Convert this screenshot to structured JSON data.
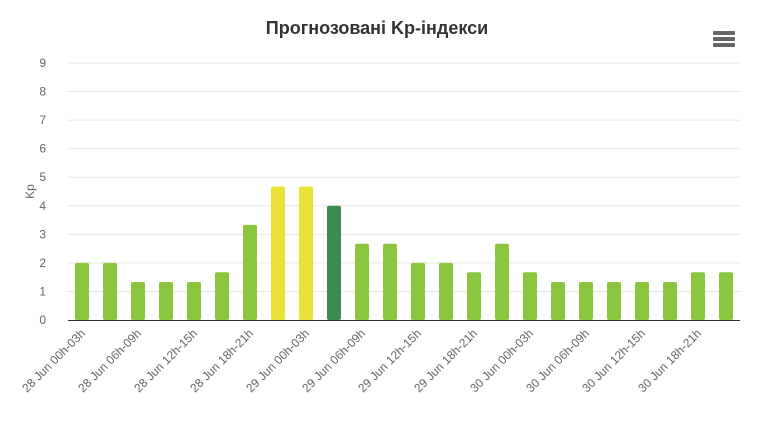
{
  "chart_data": {
    "type": "bar",
    "title": "Прогнозовані Kp-індекси",
    "ylabel": "Kp",
    "xlabel": "",
    "ylim": [
      0,
      9
    ],
    "yticks": [
      0,
      1,
      2,
      3,
      4,
      5,
      6,
      7,
      8,
      9
    ],
    "grid": true,
    "categories": [
      "28 Jun 00h-03h",
      "28 Jun 03h-06h",
      "28 Jun 06h-09h",
      "28 Jun 09h-12h",
      "28 Jun 12h-15h",
      "28 Jun 15h-18h",
      "28 Jun 18h-21h",
      "28 Jun 21h-00h",
      "29 Jun 00h-03h",
      "29 Jun 03h-06h",
      "29 Jun 06h-09h",
      "29 Jun 09h-12h",
      "29 Jun 12h-15h",
      "29 Jun 15h-18h",
      "29 Jun 18h-21h",
      "29 Jun 21h-00h",
      "30 Jun 00h-03h",
      "30 Jun 03h-06h",
      "30 Jun 06h-09h",
      "30 Jun 09h-12h",
      "30 Jun 12h-15h",
      "30 Jun 15h-18h",
      "30 Jun 18h-21h",
      "30 Jun 21h-00h"
    ],
    "visible_category_labels": [
      "28 Jun 00h-03h",
      "28 Jun 06h-09h",
      "28 Jun 12h-15h",
      "28 Jun 18h-21h",
      "29 Jun 00h-03h",
      "29 Jun 06h-09h",
      "29 Jun 12h-15h",
      "29 Jun 18h-21h",
      "30 Jun 00h-03h",
      "30 Jun 06h-09h",
      "30 Jun 12h-15h",
      "30 Jun 18h-21h"
    ],
    "values": [
      2,
      2,
      1.33,
      1.33,
      1.33,
      1.67,
      3.33,
      4.67,
      4.67,
      4,
      2.67,
      2.67,
      2,
      2,
      1.67,
      2.67,
      1.67,
      1.33,
      1.33,
      1.33,
      1.33,
      1.33,
      1.67,
      1.67
    ],
    "bar_colors": [
      "#8cc63f",
      "#8cc63f",
      "#8cc63f",
      "#8cc63f",
      "#8cc63f",
      "#8cc63f",
      "#8cc63f",
      "#e8e336",
      "#e8e336",
      "#3d8c4f",
      "#8cc63f",
      "#8cc63f",
      "#8cc63f",
      "#8cc63f",
      "#8cc63f",
      "#8cc63f",
      "#8cc63f",
      "#8cc63f",
      "#8cc63f",
      "#8cc63f",
      "#8cc63f",
      "#8cc63f",
      "#8cc63f",
      "#8cc63f"
    ],
    "colors": {
      "grid": "#e6e6e6",
      "axis": "#333333",
      "text": "#666666",
      "title": "#333333"
    }
  },
  "ui": {
    "menu_icon": "hamburger-menu-icon"
  }
}
